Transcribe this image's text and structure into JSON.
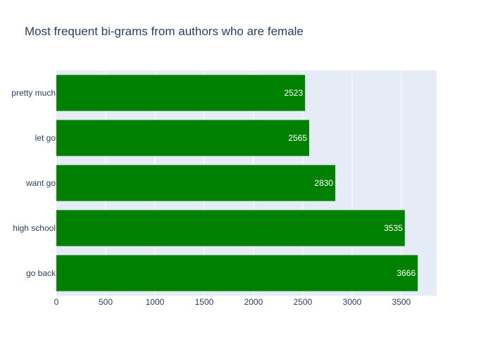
{
  "chart_data": {
    "type": "bar",
    "orientation": "horizontal",
    "title": "Most frequent bi-grams from authors who are female",
    "xlabel": "",
    "ylabel": "",
    "categories": [
      "go back",
      "high school",
      "want go",
      "let go",
      "pretty much"
    ],
    "values": [
      3666,
      3535,
      2830,
      2565,
      2523
    ],
    "value_labels": [
      "3666",
      "3535",
      "2830",
      "2565",
      "2523"
    ],
    "xlim": [
      0,
      3858
    ],
    "xticks": [
      0,
      500,
      1000,
      1500,
      2000,
      2500,
      3000,
      3500
    ],
    "xtick_labels": [
      "0",
      "500",
      "1000",
      "1500",
      "2000",
      "2500",
      "3000",
      "3500"
    ],
    "grid": true,
    "legend": "none",
    "colors": {
      "bar": "#008000",
      "plot_background": "#e5ecf6",
      "grid": "#ffffff",
      "text": "#2a3f5f",
      "bar_label": "#ffffff"
    }
  }
}
